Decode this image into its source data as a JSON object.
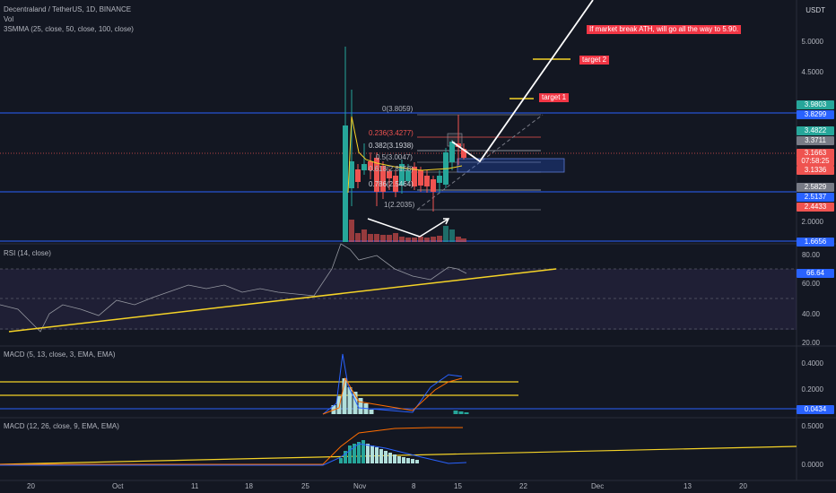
{
  "header": {
    "symbol": "Decentraland / TetherUS, 1D, BINANCE",
    "vol_label": "Vol",
    "ma_label": "3SMMA (25, close, 50, close, 100, close)",
    "currency": "USDT"
  },
  "panes": {
    "rsi_label": "RSI (14, close)",
    "macd1_label": "MACD (5, 13, close, 3, EMA, EMA)",
    "macd2_label": "MACD (12, 26, close, 9, EMA, EMA)"
  },
  "price_axis": [
    "5.0000",
    "4.5000",
    "2.0000"
  ],
  "rsi_axis": [
    "80.00",
    "60.00",
    "40.00",
    "20.00"
  ],
  "macd1_axis": [
    "0.4000",
    "0.2000"
  ],
  "macd2_axis": [
    "0.5000",
    "0.0000"
  ],
  "price_tags": [
    {
      "text": "3.9803",
      "color": "#26a69a"
    },
    {
      "text": "3.8299",
      "color": "#2962ff"
    },
    {
      "text": "3.4822",
      "color": "#26a69a"
    },
    {
      "text": "3.3711",
      "color": "#787b86"
    },
    {
      "text": "3.1663",
      "color": "#ef5350"
    },
    {
      "text": "07:58:25",
      "color": "#ef5350"
    },
    {
      "text": "3.1336",
      "color": "#ef5350"
    },
    {
      "text": "2.5829",
      "color": "#787b86"
    },
    {
      "text": "2.5137",
      "color": "#2962ff"
    },
    {
      "text": "2.4433",
      "color": "#ef5350"
    },
    {
      "text": "1.6656",
      "color": "#2962ff"
    }
  ],
  "rsi_tag": "66.64",
  "macd1_tag": "0.0434",
  "fib_levels": [
    {
      "text": "0(3.8059)",
      "color": "#b2b5be"
    },
    {
      "text": "0.236(3.4277)",
      "color": "#ef5350"
    },
    {
      "text": "0.382(3.1938)",
      "color": "#d1d4dc"
    },
    {
      "text": "0.5(3.0047)",
      "color": "#b2b5be"
    },
    {
      "text": "0.618(2.8158)",
      "color": "#b2b5be"
    },
    {
      "text": "0.786(2.5464)",
      "color": "#d1d4dc"
    },
    {
      "text": "1(2.2035)",
      "color": "#b2b5be"
    }
  ],
  "annotations": {
    "target1": "target 1",
    "target2": "target 2",
    "note": "If market break ATH, will go all the way to 5.90."
  },
  "time_axis": [
    "20",
    "Oct",
    "11",
    "18",
    "25",
    "Nov",
    "8",
    "15",
    "22",
    "Dec",
    "13",
    "20"
  ],
  "colors": {
    "bg": "#131722",
    "up": "#26a69a",
    "down": "#ef5350",
    "trend": "#f5d327",
    "level": "#2962ff",
    "annotation_bg": "#f23645"
  },
  "chart_data": {
    "type": "candlestick",
    "symbol": "Decentraland / TetherUS",
    "interval": "1D",
    "exchange": "BINANCE",
    "last_price": 3.1663,
    "price_axis_ticks": [
      2.0,
      4.5,
      5.0
    ],
    "fib_retracement": [
      {
        "level": 0,
        "price": 3.8059
      },
      {
        "level": 0.236,
        "price": 3.4277
      },
      {
        "level": 0.382,
        "price": 3.1938
      },
      {
        "level": 0.5,
        "price": 3.0047
      },
      {
        "level": 0.618,
        "price": 2.8158
      },
      {
        "level": 0.786,
        "price": 2.5464
      },
      {
        "level": 1,
        "price": 2.2035
      }
    ],
    "rsi_value": 66.64,
    "macd_fast_value": 0.0434
  }
}
